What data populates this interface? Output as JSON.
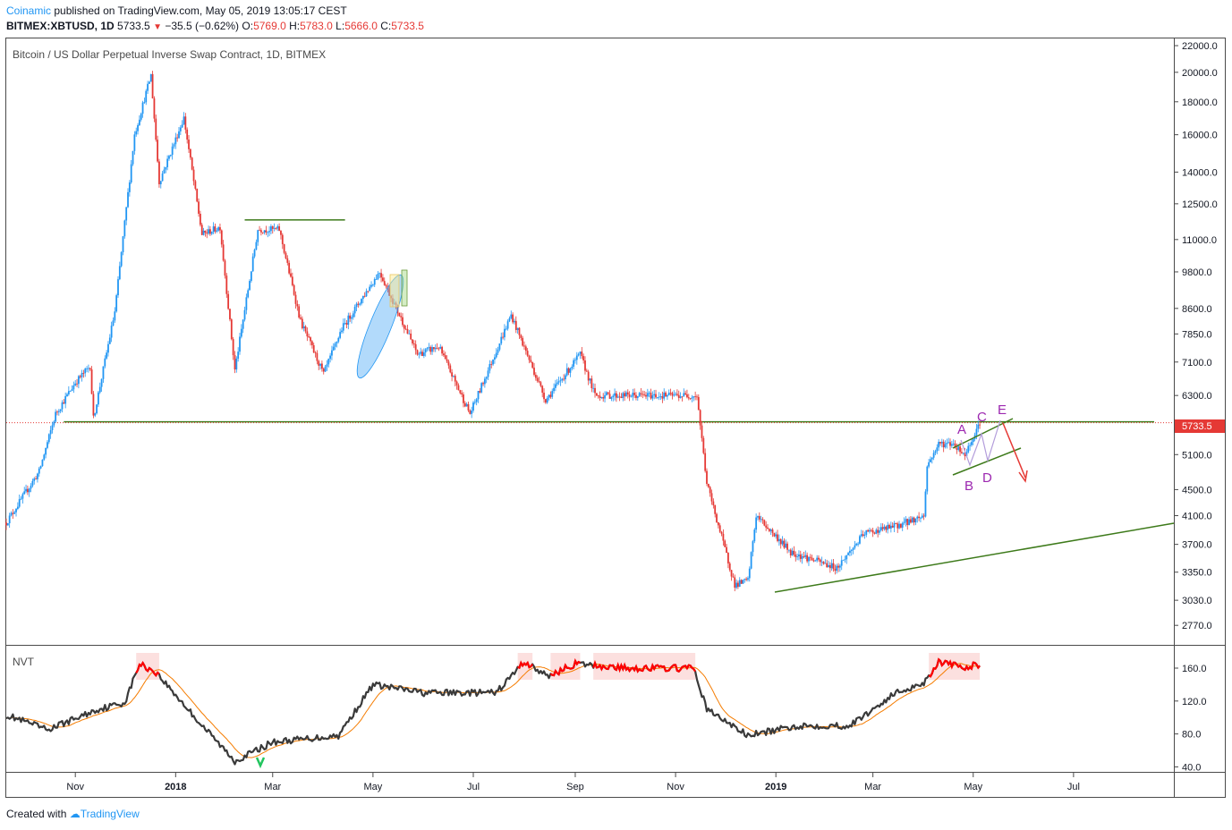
{
  "header": {
    "author": "Coinamic",
    "published_text": "published on TradingView.com, May 05, 2019 13:05:17 CEST",
    "symbol": "BITMEX:XBTUSD, 1D",
    "last": "5733.5",
    "change": "−35.5 (−0.62%)",
    "o_label": "O:",
    "o_val": "5769.0",
    "h_label": "H:",
    "h_val": "5783.0",
    "l_label": "L:",
    "l_val": "5666.0",
    "c_label": "C:",
    "c_val": "5733.5"
  },
  "main": {
    "title": "Bitcoin / US Dollar Perpetual Inverse Swap Contract, 1D, BITMEX",
    "price_ticks": [
      "22000.0",
      "20000.0",
      "18000.0",
      "16000.0",
      "14000.0",
      "12500.0",
      "11000.0",
      "9800.0",
      "8600.0",
      "7850.0",
      "7100.0",
      "6300.0",
      "5100.0",
      "4500.0",
      "4100.0",
      "3700.0",
      "3350.0",
      "3030.0",
      "2770.0"
    ],
    "last_price_label": "5733.5",
    "wave_labels": [
      "A",
      "B",
      "C",
      "D",
      "E"
    ]
  },
  "indicator": {
    "name": "NVT",
    "ticks": [
      "160.0",
      "120.0",
      "80.0",
      "40.0"
    ]
  },
  "time_axis": {
    "labels": [
      "Nov",
      "2018",
      "Mar",
      "May",
      "Jul",
      "Sep",
      "Nov",
      "2019",
      "Mar",
      "May",
      "Jul"
    ]
  },
  "footer": {
    "created_with": "Created with",
    "brand": "TradingView"
  },
  "colors": {
    "up": "#2196f3",
    "down": "#e53935",
    "trendline": "#3d7a1a",
    "wave_label": "#9c27b0",
    "nvt_line": "#3a3a3a",
    "nvt_ma": "#f57c00"
  },
  "chart_data": [
    {
      "type": "candlestick",
      "title": "Bitcoin / US Dollar Perpetual Inverse Swap Contract, 1D, BITMEX",
      "y_scale": "log",
      "ylim": [
        2600,
        22500
      ],
      "x_range": [
        "2017-09-20",
        "2019-08-31"
      ],
      "close_series": [
        [
          "2017-09-20",
          4000
        ],
        [
          "2017-10-10",
          4800
        ],
        [
          "2017-10-20",
          5900
        ],
        [
          "2017-11-01",
          6600
        ],
        [
          "2017-11-10",
          7000
        ],
        [
          "2017-11-12",
          5800
        ],
        [
          "2017-11-25",
          8500
        ],
        [
          "2017-12-07",
          16000
        ],
        [
          "2017-12-17",
          19800
        ],
        [
          "2017-12-22",
          13500
        ],
        [
          "2018-01-06",
          17000
        ],
        [
          "2018-01-17",
          11200
        ],
        [
          "2018-01-28",
          11500
        ],
        [
          "2018-02-06",
          6900
        ],
        [
          "2018-02-20",
          11400
        ],
        [
          "2018-03-05",
          11400
        ],
        [
          "2018-03-18",
          8200
        ],
        [
          "2018-04-01",
          6800
        ],
        [
          "2018-04-12",
          8000
        ],
        [
          "2018-05-05",
          9800
        ],
        [
          "2018-05-28",
          7300
        ],
        [
          "2018-06-10",
          7500
        ],
        [
          "2018-06-29",
          5900
        ],
        [
          "2018-07-24",
          8400
        ],
        [
          "2018-08-14",
          6200
        ],
        [
          "2018-09-04",
          7300
        ],
        [
          "2018-09-13",
          6300
        ],
        [
          "2018-11-14",
          6300
        ],
        [
          "2018-11-20",
          4600
        ],
        [
          "2018-12-07",
          3200
        ],
        [
          "2018-12-15",
          3250
        ],
        [
          "2018-12-20",
          4100
        ],
        [
          "2019-01-10",
          3600
        ],
        [
          "2019-02-07",
          3400
        ],
        [
          "2019-02-24",
          3850
        ],
        [
          "2019-03-15",
          3950
        ],
        [
          "2019-04-01",
          4100
        ],
        [
          "2019-04-03",
          4900
        ],
        [
          "2019-04-10",
          5300
        ],
        [
          "2019-04-19",
          5300
        ],
        [
          "2019-04-26",
          5100
        ],
        [
          "2019-05-05",
          5733.5
        ]
      ],
      "horizontal_levels": [
        11800,
        5733.5
      ],
      "annotations": [
        "A",
        "B",
        "C",
        "D",
        "E"
      ]
    },
    {
      "type": "line",
      "name": "NVT",
      "ylim": [
        35,
        185
      ],
      "series": [
        [
          "2017-09-20",
          103
        ],
        [
          "2017-10-15",
          85
        ],
        [
          "2017-11-15",
          110
        ],
        [
          "2017-12-01",
          118
        ],
        [
          "2017-12-10",
          165
        ],
        [
          "2017-12-20",
          155
        ],
        [
          "2018-01-15",
          95
        ],
        [
          "2018-02-06",
          47
        ],
        [
          "2018-03-01",
          70
        ],
        [
          "2018-04-10",
          78
        ],
        [
          "2018-05-01",
          140
        ],
        [
          "2018-06-01",
          130
        ],
        [
          "2018-07-15",
          130
        ],
        [
          "2018-08-01",
          168
        ],
        [
          "2018-08-15",
          150
        ],
        [
          "2018-09-01",
          165
        ],
        [
          "2018-10-01",
          160
        ],
        [
          "2018-11-12",
          160
        ],
        [
          "2018-11-20",
          110
        ],
        [
          "2018-12-15",
          78
        ],
        [
          "2019-01-15",
          90
        ],
        [
          "2019-02-15",
          90
        ],
        [
          "2019-03-15",
          130
        ],
        [
          "2019-04-01",
          142
        ],
        [
          "2019-04-10",
          168
        ],
        [
          "2019-04-25",
          160
        ],
        [
          "2019-05-05",
          165
        ]
      ]
    }
  ]
}
